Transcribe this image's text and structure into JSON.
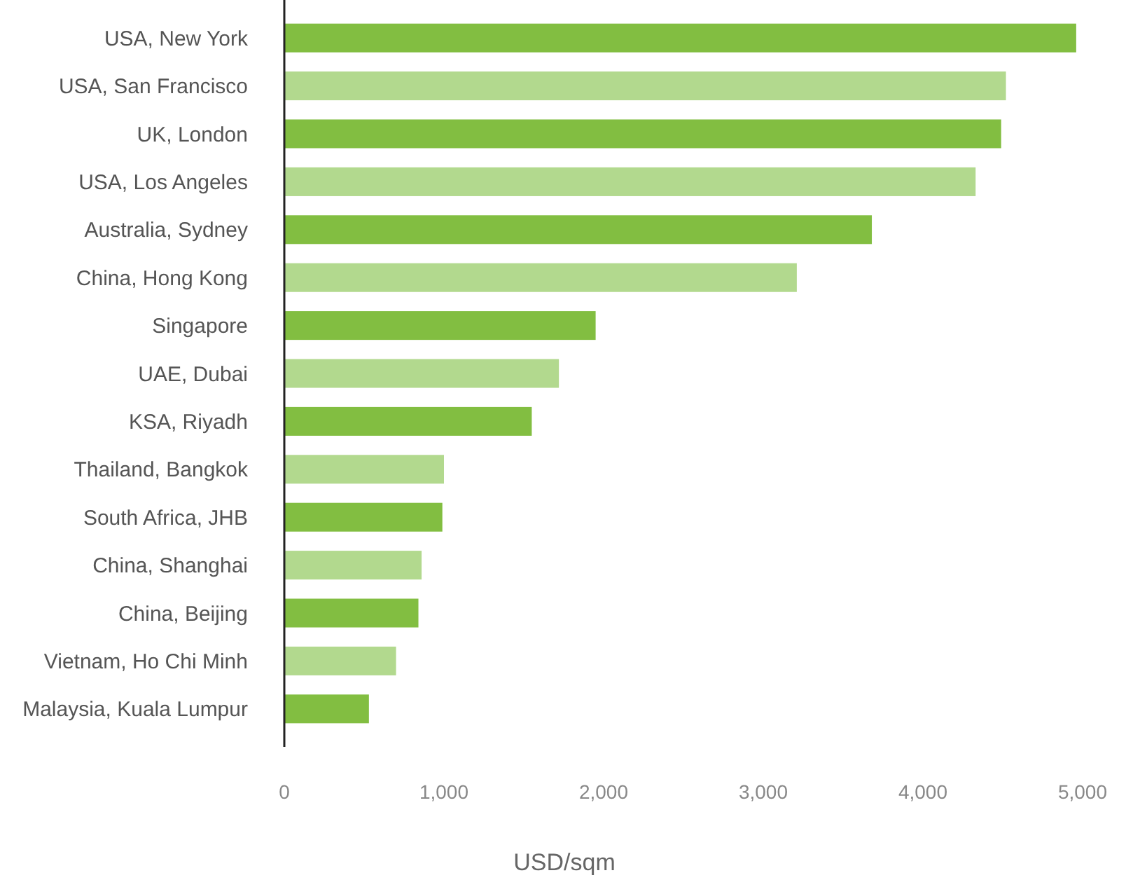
{
  "chart_data": {
    "type": "bar",
    "orientation": "horizontal",
    "xlabel": "USD/sqm",
    "categories": [
      "USA, New York",
      "USA, San Francisco",
      "UK, London",
      "USA, Los Angeles",
      "Australia, Sydney",
      "China, Hong Kong",
      "Singapore",
      "UAE, Dubai",
      "KSA, Riyadh",
      "Thailand, Bangkok",
      "South Africa, JHB",
      "China, Shanghai",
      "China, Beijing",
      "Vietnam, Ho Chi Minh",
      "Malaysia, Kuala Lumpur"
    ],
    "values": [
      4960,
      4520,
      4490,
      4330,
      3680,
      3210,
      1950,
      1720,
      1550,
      1000,
      990,
      860,
      840,
      700,
      530
    ],
    "colors": [
      "#82be41",
      "#b2d98e",
      "#82be41",
      "#b2d98e",
      "#82be41",
      "#b2d98e",
      "#82be41",
      "#b2d98e",
      "#82be41",
      "#b2d98e",
      "#82be41",
      "#b2d98e",
      "#82be41",
      "#b2d98e",
      "#82be41"
    ],
    "xlim": [
      0,
      5000
    ],
    "xticks": [
      0,
      {
        "value": 1000,
        "label": "1,000"
      },
      {
        "value": 2000,
        "label": "2,000"
      },
      {
        "value": 3000,
        "label": "3,000"
      },
      {
        "value": 4000,
        "label": "4,000"
      },
      {
        "value": 5000,
        "label": "5,000"
      }
    ],
    "grid": false
  }
}
